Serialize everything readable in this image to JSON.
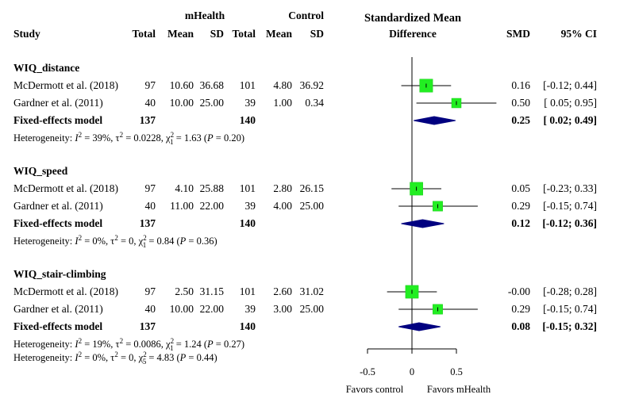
{
  "header": {
    "group_mhealth": "mHealth",
    "group_control": "Control",
    "smd_title_line1": "Standardized Mean",
    "smd_title_line2": "Difference",
    "col_study": "Study",
    "col_total_e": "Total",
    "col_mean_e": "Mean",
    "col_sd_e": "SD",
    "col_total_c": "Total",
    "col_mean_c": "Mean",
    "col_sd_c": "SD",
    "col_smd": "SMD",
    "col_ci": "95% CI"
  },
  "groups": [
    {
      "name": "WIQ_distance",
      "studies": [
        {
          "study": "McDermott et al. (2018)",
          "total_e": "97",
          "mean_e": "10.60",
          "sd_e": "36.68",
          "total_c": "101",
          "mean_c": "4.80",
          "sd_c": "36.92",
          "smd": "0.16",
          "ci": "[-0.12; 0.44]"
        },
        {
          "study": "Gardner et al. (2011)",
          "total_e": "40",
          "mean_e": "10.00",
          "sd_e": "25.00",
          "total_c": "39",
          "mean_c": "1.00",
          "sd_c": "0.34",
          "smd": "0.50",
          "ci": "[ 0.05; 0.95]"
        }
      ],
      "fixed": {
        "label": "Fixed-effects model",
        "total_e": "137",
        "total_c": "140",
        "smd": "0.25",
        "ci": "[ 0.02; 0.49]"
      },
      "heterogeneity": {
        "prefix": "Heterogeneity: ",
        "i2": "39%",
        "tau2": "0.0228",
        "chi_df": "1",
        "chi": "1.63",
        "p": "0.20"
      }
    },
    {
      "name": "WIQ_speed",
      "studies": [
        {
          "study": "McDermott et al. (2018)",
          "total_e": "97",
          "mean_e": "4.10",
          "sd_e": "25.88",
          "total_c": "101",
          "mean_c": "2.80",
          "sd_c": "26.15",
          "smd": "0.05",
          "ci": "[-0.23; 0.33]"
        },
        {
          "study": "Gardner et al. (2011)",
          "total_e": "40",
          "mean_e": "11.00",
          "sd_e": "22.00",
          "total_c": "39",
          "mean_c": "4.00",
          "sd_c": "25.00",
          "smd": "0.29",
          "ci": "[-0.15; 0.74]"
        }
      ],
      "fixed": {
        "label": "Fixed-effects model",
        "total_e": "137",
        "total_c": "140",
        "smd": "0.12",
        "ci": "[-0.12; 0.36]"
      },
      "heterogeneity": {
        "prefix": "Heterogeneity: ",
        "i2": "0%",
        "tau2": "0",
        "chi_df": "1",
        "chi": "0.84",
        "p": "0.36"
      }
    },
    {
      "name": "WIQ_stair-climbing",
      "studies": [
        {
          "study": "McDermott et al. (2018)",
          "total_e": "97",
          "mean_e": "2.50",
          "sd_e": "31.15",
          "total_c": "101",
          "mean_c": "2.60",
          "sd_c": "31.02",
          "smd": "-0.00",
          "ci": "[-0.28; 0.28]"
        },
        {
          "study": "Gardner et al. (2011)",
          "total_e": "40",
          "mean_e": "10.00",
          "sd_e": "22.00",
          "total_c": "39",
          "mean_c": "3.00",
          "sd_c": "25.00",
          "smd": "0.29",
          "ci": "[-0.15; 0.74]"
        }
      ],
      "fixed": {
        "label": "Fixed-effects model",
        "total_e": "137",
        "total_c": "140",
        "smd": "0.08",
        "ci": "[-0.15; 0.32]"
      },
      "heterogeneity": {
        "prefix": "Heterogeneity: ",
        "i2": "19%",
        "tau2": "0.0086",
        "chi_df": "1",
        "chi": "1.24",
        "p": "0.27"
      }
    }
  ],
  "overall_heterogeneity": {
    "prefix": "Heterogeneity: ",
    "i2": "0%",
    "tau2": "0",
    "chi_df": "5",
    "chi": "4.83",
    "p": "0.44"
  },
  "axis": {
    "ticks": [
      "-0.5",
      "0",
      "0.5"
    ],
    "favors_left": "Favors control",
    "favors_right": "Favors mHealth"
  },
  "colors": {
    "square": "#22ee22",
    "diamond": "#000080",
    "line": "#000000"
  },
  "chart_data": {
    "type": "forest",
    "title": "Standardized Mean Difference",
    "xlabel": "",
    "xlim": [
      -0.5,
      0.5
    ],
    "xticks": [
      -0.5,
      0,
      0.5
    ],
    "reference_line": 0,
    "series": [
      {
        "name": "WIQ_distance",
        "studies": [
          {
            "label": "McDermott et al. (2018)",
            "smd": 0.16,
            "lo": -0.12,
            "hi": 0.44,
            "weight": 0.75
          },
          {
            "label": "Gardner et al. (2011)",
            "smd": 0.5,
            "lo": 0.05,
            "hi": 0.95,
            "weight": 0.25
          }
        ],
        "pooled": {
          "smd": 0.25,
          "lo": 0.02,
          "hi": 0.49
        }
      },
      {
        "name": "WIQ_speed",
        "studies": [
          {
            "label": "McDermott et al. (2018)",
            "smd": 0.05,
            "lo": -0.23,
            "hi": 0.33,
            "weight": 0.72
          },
          {
            "label": "Gardner et al. (2011)",
            "smd": 0.29,
            "lo": -0.15,
            "hi": 0.74,
            "weight": 0.28
          }
        ],
        "pooled": {
          "smd": 0.12,
          "lo": -0.12,
          "hi": 0.36
        }
      },
      {
        "name": "WIQ_stair-climbing",
        "studies": [
          {
            "label": "McDermott et al. (2018)",
            "smd": -0.0,
            "lo": -0.28,
            "hi": 0.28,
            "weight": 0.72
          },
          {
            "label": "Gardner et al. (2011)",
            "smd": 0.29,
            "lo": -0.15,
            "hi": 0.74,
            "weight": 0.28
          }
        ],
        "pooled": {
          "smd": 0.08,
          "lo": -0.15,
          "hi": 0.32
        }
      }
    ],
    "legend": [
      "Favors control",
      "Favors mHealth"
    ]
  }
}
